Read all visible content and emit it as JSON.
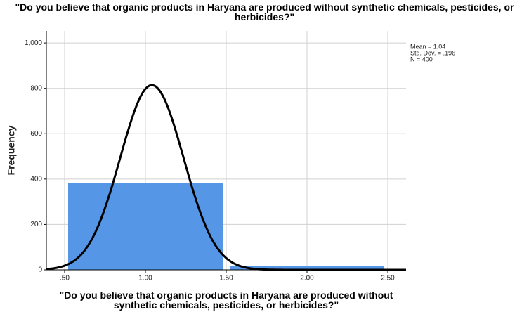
{
  "chart_data": {
    "type": "histogram",
    "title": "\"Do you believe that organic products in Haryana are produced without synthetic chemicals, pesticides, or herbicides?\"",
    "x_label": "\"Do you believe that organic products in Haryana are produced without synthetic chemicals, pesticides, or herbicides?\"",
    "y_label": "Frequency",
    "bins": [
      0.5,
      1.5,
      2.5
    ],
    "values": [
      384,
      16
    ],
    "color": "#5596e6",
    "curve_color": "#000000",
    "stats": [
      {
        "value": 1.04,
        "label": "Mean = 1.04"
      },
      {
        "value": 0.196,
        "label": "Std. Dev. = .196"
      },
      {
        "value": 400,
        "label": "N = 400"
      }
    ],
    "xlim": [
      0.387,
      2.613
    ],
    "ylim": [
      0,
      1053
    ],
    "xticks": [
      {
        "value": 0.5,
        "label": ".50"
      },
      {
        "value": 1.0,
        "label": "1.00"
      },
      {
        "value": 1.5,
        "label": "1.50"
      },
      {
        "value": 2.0,
        "label": "2.00"
      },
      {
        "value": 2.5,
        "label": "2.50"
      }
    ],
    "yticks": [
      0,
      200,
      400,
      600,
      800,
      {
        "value": 1000,
        "label": "1,000"
      }
    ],
    "grid": true
  }
}
